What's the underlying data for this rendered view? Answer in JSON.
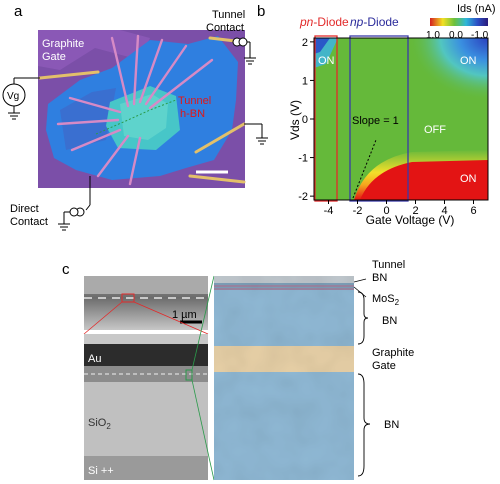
{
  "panels": {
    "a": {
      "letter": "a",
      "labels": {
        "graphite_gate": [
          "Graphite",
          "Gate"
        ],
        "tunnel_contact": [
          "Tunnel",
          "Contact"
        ],
        "tunnel_hbn": [
          "Tunnel",
          "h-BN"
        ],
        "direct_contact": [
          "Direct",
          "Contact"
        ],
        "vg": "Vg"
      },
      "colors": {
        "substrate": "#7b4fa8",
        "bn_flake": "#2f7fe0",
        "hbn": "#47c6c8",
        "contact": "#e3c06a",
        "tunnel_label": "#e01818"
      }
    },
    "b": {
      "letter": "b",
      "header_pn": [
        "pn",
        "-Diode"
      ],
      "header_np": [
        "np",
        "-Diode"
      ],
      "region_labels": {
        "on_top_left": "ON",
        "on_top_right": "ON",
        "off": "OFF",
        "on_bottom": "ON"
      },
      "slope_label": "Slope = 1",
      "colors": {
        "off": "#65b93a",
        "on_red": "#e31414",
        "yellow": "#f6e12a",
        "pn_box": "#e22a2a",
        "np_box": "#3a3aa8"
      }
    },
    "c": {
      "letter": "c",
      "scale_bar": "1 µm",
      "sem_labels": {
        "au": "Au",
        "sio2": "SiO",
        "sio2_sub": "2",
        "si": "Si ++"
      },
      "layer_labels": {
        "tunnel_bn": [
          "Tunnel",
          "BN"
        ],
        "mos2": "MoS",
        "mos2_sub": "2",
        "bn_top": "BN",
        "graphite_gate": [
          "Graphite",
          "Gate"
        ],
        "bn_bottom": "BN"
      },
      "colors": {
        "bn_blue": "#8fb8d4",
        "graphite": "#e6cfa6"
      }
    }
  },
  "chart_data": {
    "type": "heatmap",
    "title": "",
    "xlabel": "Gate Voltage (V)",
    "ylabel": "Vds (V)",
    "xlim": [
      -5,
      7
    ],
    "ylim": [
      -2.1,
      2.1
    ],
    "xticks": [
      -4,
      -2,
      0,
      2,
      4,
      6
    ],
    "yticks": [
      2,
      1,
      0,
      -1,
      -2
    ],
    "colorbar": {
      "label": "Ids (nA)",
      "ticks": [
        "1.0",
        "0.0",
        "-1.0"
      ],
      "range": [
        1.0,
        -1.0
      ]
    },
    "regions": [
      {
        "label": "OFF",
        "x": 3.6,
        "y": -0.2
      },
      {
        "label": "ON",
        "x": -4.4,
        "y": 1.6
      },
      {
        "label": "ON",
        "x": 6.0,
        "y": 1.6
      },
      {
        "label": "ON",
        "x": 6.2,
        "y": -1.5
      }
    ],
    "pn_diode_range": [
      -4.9,
      -2.8
    ],
    "np_diode_range": [
      -2.4,
      2.1
    ],
    "slope_line": {
      "label": "Slope = 1",
      "slope": 1
    }
  }
}
